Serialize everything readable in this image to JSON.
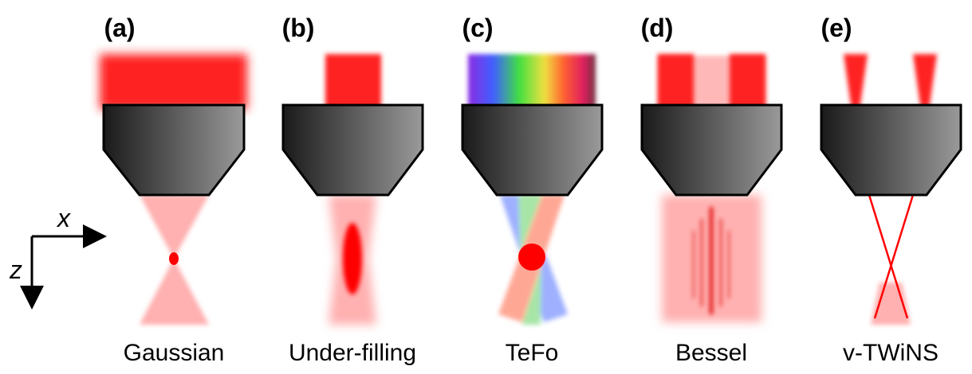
{
  "panels": [
    {
      "label": "(a)",
      "name": "Gaussian"
    },
    {
      "label": "(b)",
      "name": "Under-filling"
    },
    {
      "label": "(c)",
      "name": "TeFo"
    },
    {
      "label": "(d)",
      "name": "Bessel"
    },
    {
      "label": "(e)",
      "name": "v-TWiNS"
    }
  ],
  "axes": {
    "x": "x",
    "z": "z"
  }
}
